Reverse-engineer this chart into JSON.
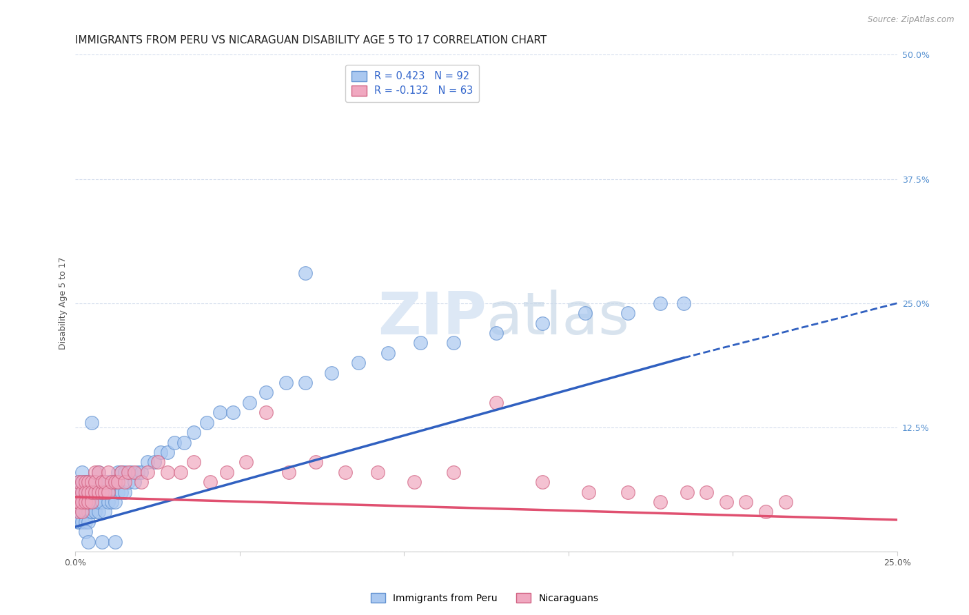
{
  "title": "IMMIGRANTS FROM PERU VS NICARAGUAN DISABILITY AGE 5 TO 17 CORRELATION CHART",
  "source": "Source: ZipAtlas.com",
  "ylabel": "Disability Age 5 to 17",
  "xlim": [
    0.0,
    0.25
  ],
  "ylim": [
    0.0,
    0.5
  ],
  "xticks": [
    0.0,
    0.05,
    0.1,
    0.15,
    0.2,
    0.25
  ],
  "xticklabels": [
    "0.0%",
    "",
    "",
    "",
    "",
    "25.0%"
  ],
  "yticks_right": [
    0.0,
    0.125,
    0.25,
    0.375,
    0.5
  ],
  "yticklabels_right": [
    "",
    "12.5%",
    "25.0%",
    "37.5%",
    "50.0%"
  ],
  "legend_label1": "Immigrants from Peru",
  "legend_label2": "Nicaraguans",
  "peru_color": "#aac8f0",
  "nica_color": "#f0a8c0",
  "peru_edge_color": "#6090d0",
  "nica_edge_color": "#d06080",
  "peru_line_color": "#3060c0",
  "nica_line_color": "#e05070",
  "peru_R": 0.423,
  "peru_N": 92,
  "nica_R": -0.132,
  "nica_N": 63,
  "title_fontsize": 11,
  "ylabel_fontsize": 9,
  "tick_fontsize": 9,
  "background_color": "#ffffff",
  "grid_color": "#c8d4e8",
  "watermark_color": "#dde8f5",
  "peru_line_solid_end": 0.185,
  "peru_line_start_y": 0.025,
  "peru_line_end_y": 0.195,
  "peru_line_dashed_end": 0.25,
  "peru_line_dashed_end_y": 0.25,
  "nica_line_start_y": 0.055,
  "nica_line_end_y": 0.032,
  "peru_scatter_x": [
    0.001,
    0.001,
    0.001,
    0.001,
    0.001,
    0.001,
    0.001,
    0.002,
    0.002,
    0.002,
    0.002,
    0.002,
    0.002,
    0.003,
    0.003,
    0.003,
    0.003,
    0.003,
    0.003,
    0.004,
    0.004,
    0.004,
    0.004,
    0.004,
    0.005,
    0.005,
    0.005,
    0.005,
    0.005,
    0.006,
    0.006,
    0.006,
    0.006,
    0.007,
    0.007,
    0.007,
    0.007,
    0.008,
    0.008,
    0.008,
    0.009,
    0.009,
    0.009,
    0.01,
    0.01,
    0.01,
    0.011,
    0.011,
    0.012,
    0.012,
    0.013,
    0.013,
    0.014,
    0.014,
    0.015,
    0.015,
    0.016,
    0.017,
    0.018,
    0.019,
    0.02,
    0.022,
    0.024,
    0.026,
    0.028,
    0.03,
    0.033,
    0.036,
    0.04,
    0.044,
    0.048,
    0.053,
    0.058,
    0.064,
    0.07,
    0.078,
    0.086,
    0.095,
    0.105,
    0.115,
    0.128,
    0.142,
    0.155,
    0.168,
    0.178,
    0.185,
    0.07,
    0.005,
    0.003,
    0.004,
    0.008,
    0.012
  ],
  "peru_scatter_y": [
    0.03,
    0.04,
    0.05,
    0.06,
    0.07,
    0.03,
    0.05,
    0.03,
    0.04,
    0.06,
    0.07,
    0.05,
    0.08,
    0.04,
    0.05,
    0.06,
    0.04,
    0.07,
    0.03,
    0.04,
    0.05,
    0.07,
    0.03,
    0.06,
    0.04,
    0.05,
    0.07,
    0.04,
    0.06,
    0.04,
    0.06,
    0.07,
    0.05,
    0.04,
    0.06,
    0.05,
    0.08,
    0.05,
    0.06,
    0.07,
    0.04,
    0.06,
    0.07,
    0.05,
    0.07,
    0.06,
    0.05,
    0.07,
    0.05,
    0.07,
    0.06,
    0.08,
    0.06,
    0.08,
    0.06,
    0.08,
    0.07,
    0.08,
    0.07,
    0.08,
    0.08,
    0.09,
    0.09,
    0.1,
    0.1,
    0.11,
    0.11,
    0.12,
    0.13,
    0.14,
    0.14,
    0.15,
    0.16,
    0.17,
    0.17,
    0.18,
    0.19,
    0.2,
    0.21,
    0.21,
    0.22,
    0.23,
    0.24,
    0.24,
    0.25,
    0.25,
    0.28,
    0.13,
    0.02,
    0.01,
    0.01,
    0.01
  ],
  "nica_scatter_x": [
    0.001,
    0.001,
    0.001,
    0.001,
    0.001,
    0.002,
    0.002,
    0.002,
    0.002,
    0.003,
    0.003,
    0.003,
    0.004,
    0.004,
    0.004,
    0.005,
    0.005,
    0.005,
    0.006,
    0.006,
    0.006,
    0.007,
    0.007,
    0.008,
    0.008,
    0.009,
    0.009,
    0.01,
    0.01,
    0.011,
    0.012,
    0.013,
    0.014,
    0.015,
    0.016,
    0.018,
    0.02,
    0.022,
    0.025,
    0.028,
    0.032,
    0.036,
    0.041,
    0.046,
    0.052,
    0.058,
    0.065,
    0.073,
    0.082,
    0.092,
    0.103,
    0.115,
    0.128,
    0.142,
    0.156,
    0.168,
    0.178,
    0.186,
    0.192,
    0.198,
    0.204,
    0.21,
    0.216
  ],
  "nica_scatter_y": [
    0.04,
    0.05,
    0.06,
    0.07,
    0.05,
    0.04,
    0.06,
    0.07,
    0.05,
    0.05,
    0.07,
    0.06,
    0.05,
    0.07,
    0.06,
    0.05,
    0.07,
    0.06,
    0.06,
    0.08,
    0.07,
    0.06,
    0.08,
    0.06,
    0.07,
    0.06,
    0.07,
    0.06,
    0.08,
    0.07,
    0.07,
    0.07,
    0.08,
    0.07,
    0.08,
    0.08,
    0.07,
    0.08,
    0.09,
    0.08,
    0.08,
    0.09,
    0.07,
    0.08,
    0.09,
    0.14,
    0.08,
    0.09,
    0.08,
    0.08,
    0.07,
    0.08,
    0.15,
    0.07,
    0.06,
    0.06,
    0.05,
    0.06,
    0.06,
    0.05,
    0.05,
    0.04,
    0.05
  ]
}
